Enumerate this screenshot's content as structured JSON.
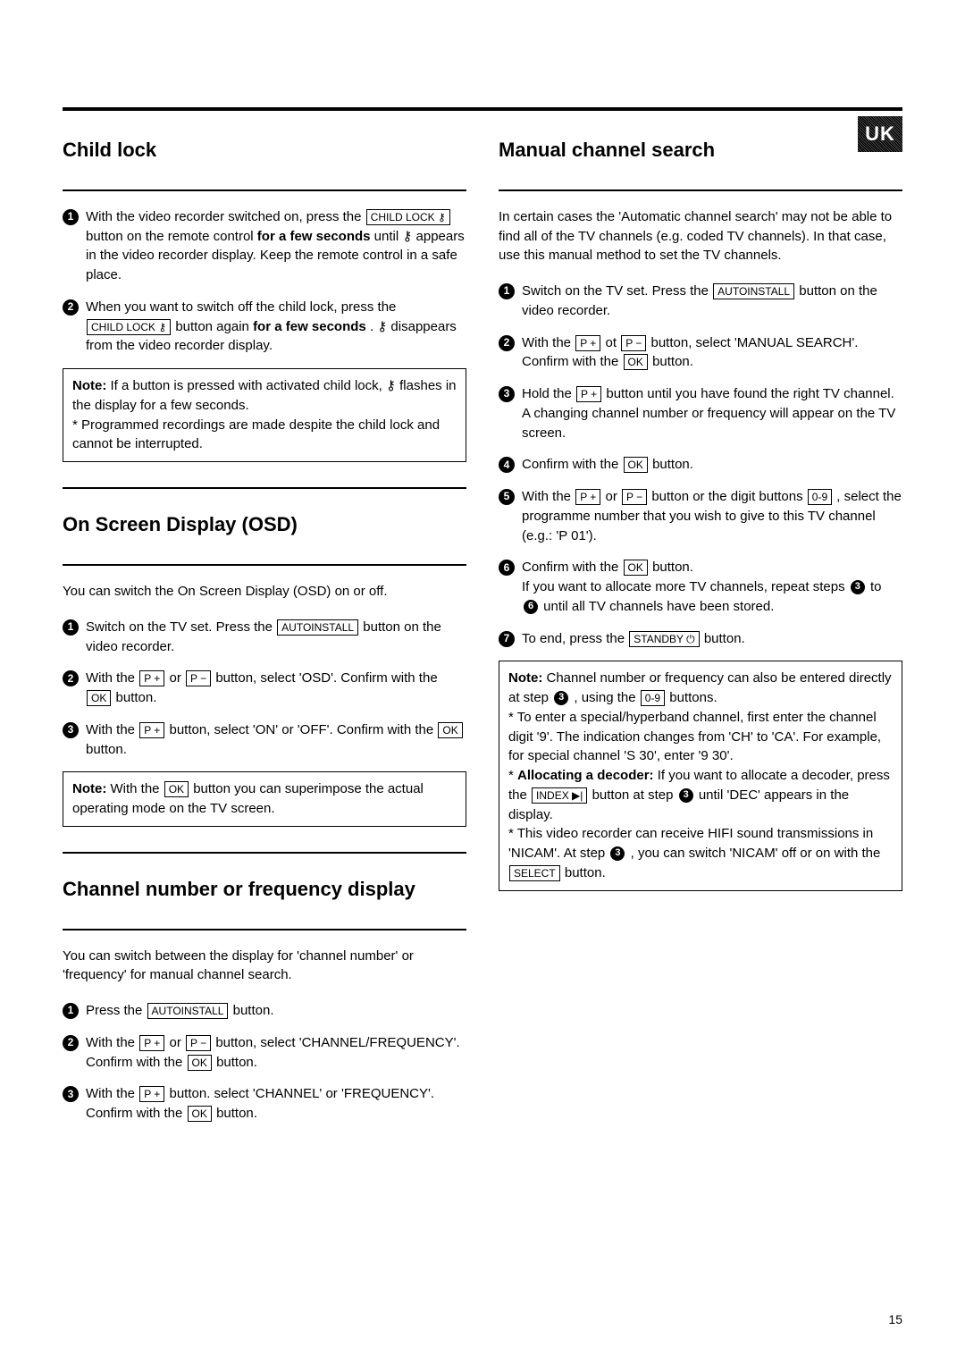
{
  "badge": "UK",
  "page_number": "15",
  "left": {
    "s1": {
      "title": "Child lock",
      "step1_a": "With the video recorder switched on, press the ",
      "step1_b": " button on the remote control ",
      "step1_c": "for a few seconds",
      "step1_d": " until ⚷ appears in the video recorder display. Keep the remote control in a safe place.",
      "step2_a": "When you want to switch off the child lock, press the ",
      "step2_b": " button again ",
      "step2_c": "for a few seconds",
      "step2_d": ". ⚷ disappears from the video recorder display.",
      "note_label": "Note:",
      "note_a": " If a button is pressed with activated child lock, ⚷ flashes in the display for a few seconds.",
      "note_b": "* Programmed recordings are made despite the child lock and cannot be interrupted."
    },
    "s2": {
      "title": "On Screen Display (OSD)",
      "intro": "You can switch the On Screen Display (OSD) on or off.",
      "step1_a": "Switch on the TV set. Press the ",
      "step1_b": " button on the video recorder.",
      "step2_a": "With the ",
      "step2_b": " or ",
      "step2_c": " button, select 'OSD'. Confirm with the ",
      "step2_d": " button.",
      "step3_a": "With the ",
      "step3_b": " button, select 'ON' or 'OFF'. Confirm with the ",
      "step3_c": " button.",
      "note_label": "Note:",
      "note_a": " With the ",
      "note_b": " button you can superimpose the actual operating mode on the TV screen."
    },
    "s3": {
      "title": "Channel number or frequency display",
      "intro": "You can switch between the display for 'channel number' or 'frequency' for manual channel search.",
      "step1_a": "Press the ",
      "step1_b": " button.",
      "step2_a": "With the ",
      "step2_b": " or ",
      "step2_c": " button, select 'CHANNEL/FREQUENCY'. Confirm with the ",
      "step2_d": " button.",
      "step3_a": "With the ",
      "step3_b": " button. select 'CHANNEL' or 'FREQUENCY'. Confirm with the ",
      "step3_c": " button."
    }
  },
  "right": {
    "s1": {
      "title": "Manual channel search",
      "intro": "In certain cases the 'Automatic channel search' may not be able to find all of the TV channels (e.g. coded TV channels). In that case, use this manual method to set the TV channels.",
      "step1_a": "Switch on the TV set. Press the ",
      "step1_b": " button on the video recorder.",
      "step2_a": "With the ",
      "step2_b": " ot ",
      "step2_c": " button, select 'MANUAL SEARCH'. Confirm with the ",
      "step2_d": " button.",
      "step3_a": "Hold the ",
      "step3_b": " button until you have found the right TV channel. A changing channel number or frequency will appear on the TV screen.",
      "step4_a": "Confirm with the ",
      "step4_b": " button.",
      "step5_a": "With the ",
      "step5_b": " or ",
      "step5_c": " button or the digit buttons ",
      "step5_d": " , select the programme number that you wish to give to this TV channel (e.g.: 'P 01').",
      "step6_a": "Confirm with the ",
      "step6_b": " button.",
      "step6_c": "If you want to allocate more TV channels, repeat steps ",
      "step6_d": " to ",
      "step6_e": " until all TV channels have been stored.",
      "step7_a": "To end, press the ",
      "step7_b": " button.",
      "note_label": "Note:",
      "note_a": " Channel number or frequency can also be entered directly at step ",
      "note_b": " , using the ",
      "note_c": " buttons.",
      "note_d": "* To enter a special/hyperband channel, first enter the channel digit '9'. The indication changes from 'CH' to 'CA'. For example, for special channel 'S 30', enter '9 30'.",
      "note_e1": "* ",
      "note_e2": "Allocating a decoder:",
      "note_e3": " If you want to allocate a decoder, press the ",
      "note_e4": " button at step ",
      "note_e5": " until 'DEC' appears in the display.",
      "note_f1": "* This video recorder can receive HIFI sound transmissions in 'NICAM'. At step ",
      "note_f2": " , you can switch 'NICAM' off or on with the ",
      "note_f3": " button."
    }
  },
  "keys": {
    "childlock": "CHILD LOCK ⚷",
    "autoinstall": "AUTOINSTALL",
    "pplus": "P +",
    "pminus": "P −",
    "ok": "OK",
    "digits": "0-9",
    "standby": "STANDBY ⏻",
    "index": "INDEX ▶|",
    "select": "SELECT"
  }
}
